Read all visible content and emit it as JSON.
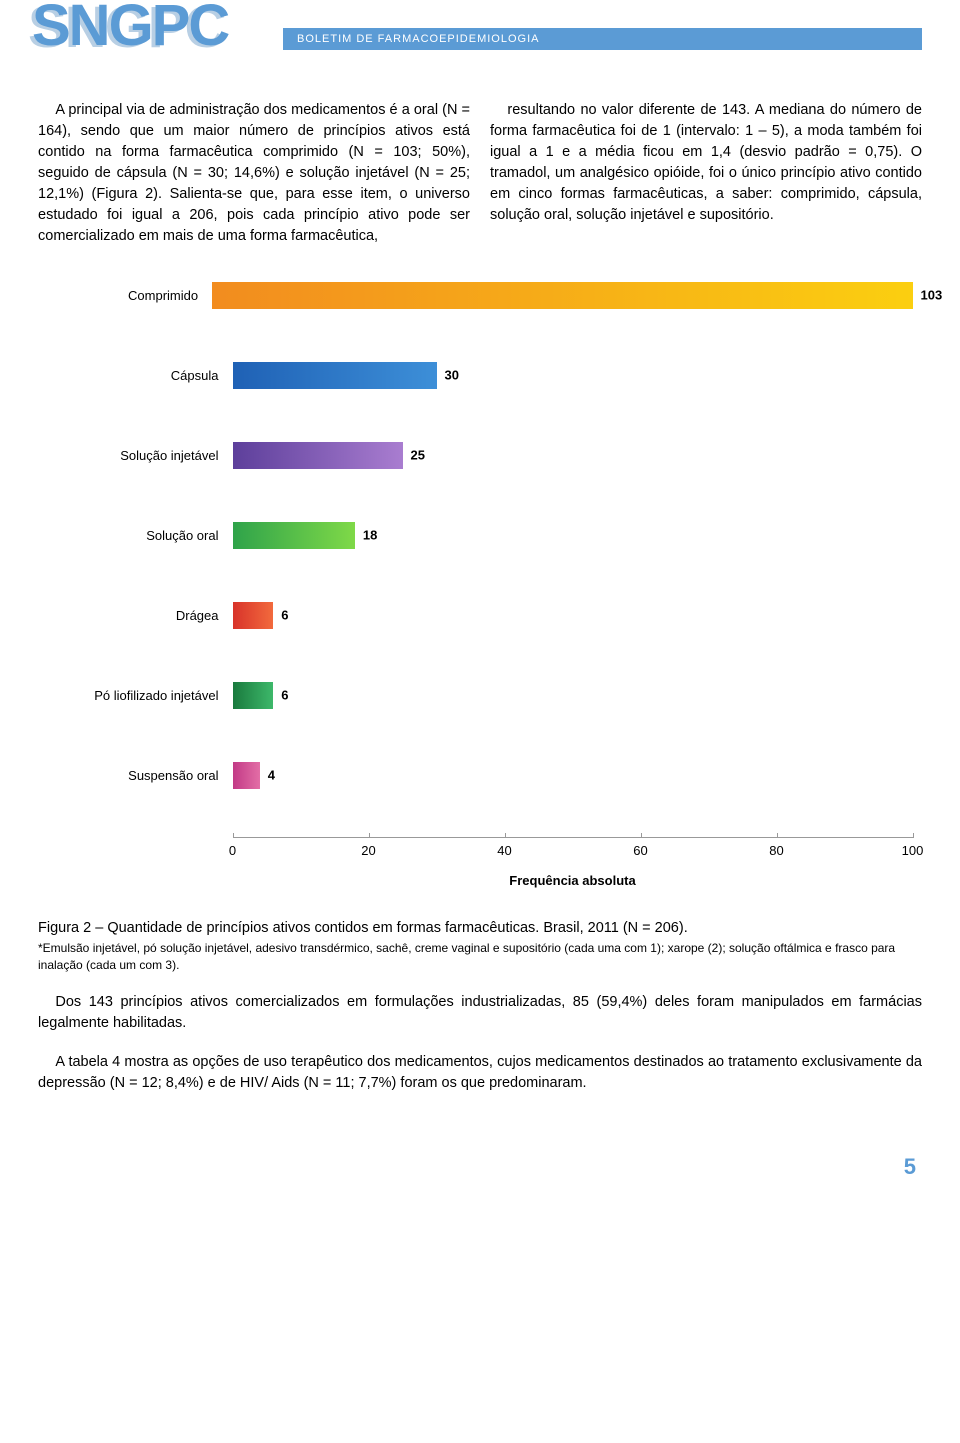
{
  "header": {
    "logo": "SNGPC",
    "bar_text": "BOLETIM DE FARMACOEPIDEMIOLOGIA"
  },
  "columns": {
    "left": "A principal via de administração dos medicamentos é a oral (N = 164), sendo que um maior número de princípios ativos está contido na forma farmacêutica comprimido (N = 103; 50%), seguido de cápsula (N = 30; 14,6%) e solução injetável (N = 25; 12,1%) (Figura 2). Salienta-se que, para esse item, o universo estudado foi igual a 206, pois cada princípio ativo pode ser comercializado em mais de uma forma farmacêutica,",
    "right": "resultando no valor diferente de 143. A mediana do número de forma farmacêutica foi de 1 (intervalo: 1 – 5), a moda também foi igual a 1 e a média ficou em 1,4 (desvio padrão = 0,75). O tramadol, um analgésico opióide, foi o único princípio ativo contido em cinco formas farmacêuticas, a saber: comprimido, cápsula, solução oral, solução injetável e supositório."
  },
  "chart": {
    "type": "bar-horizontal",
    "x_max": 103,
    "axis_max": 100,
    "tick_step": 20,
    "ticks": [
      0,
      20,
      40,
      60,
      80,
      100
    ],
    "axis_title": "Frequência absoluta",
    "bars": [
      {
        "label": "Comprimido",
        "value": 103,
        "gradient": [
          "#f28c1f",
          "#fbcf10"
        ]
      },
      {
        "label": "Cápsula",
        "value": 30,
        "gradient": [
          "#1f61b5",
          "#3d8fd8"
        ]
      },
      {
        "label": "Solução injetável",
        "value": 25,
        "gradient": [
          "#5d3f9b",
          "#a97dd0"
        ]
      },
      {
        "label": "Solução oral",
        "value": 18,
        "gradient": [
          "#2fa34a",
          "#7fd948"
        ]
      },
      {
        "label": "Drágea",
        "value": 6,
        "gradient": [
          "#d8332a",
          "#f26a3d"
        ]
      },
      {
        "label": "Pó liofilizado injetável",
        "value": 6,
        "gradient": [
          "#1a7a3e",
          "#3db86a"
        ]
      },
      {
        "label": "Suspensão oral",
        "value": 4,
        "gradient": [
          "#c23a86",
          "#e36ea6"
        ]
      }
    ]
  },
  "caption": "Figura 2 – Quantidade de princípios ativos contidos em formas farmacêuticas. Brasil, 2011 (N = 206).",
  "footnote": "*Emulsão injetável, pó solução injetável, adesivo transdérmico, sachê, creme vaginal e supositório (cada uma com 1); xarope (2); solução oftálmica e frasco para inalação (cada um com 3).",
  "body": {
    "p1": "Dos 143 princípios ativos comercializados em formulações industrializadas, 85 (59,4%) deles foram manipulados em farmácias legalmente habilitadas.",
    "p2": "A tabela 4 mostra as opções de uso terapêutico dos medicamentos, cujos medicamentos destinados ao tratamento exclusivamente da depressão (N = 12; 8,4%) e de HIV/ Aids (N = 11; 7,7%) foram os que predominaram."
  },
  "page_number": "5"
}
